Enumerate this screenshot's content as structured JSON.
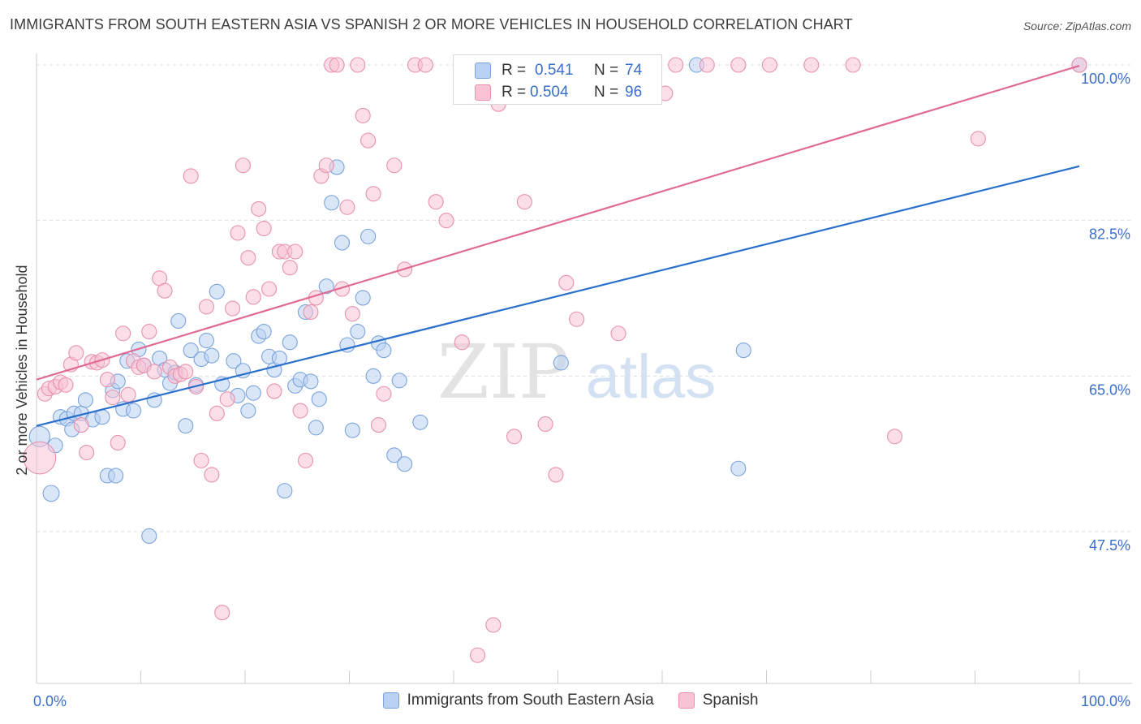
{
  "title": "IMMIGRANTS FROM SOUTH EASTERN ASIA VS SPANISH 2 OR MORE VEHICLES IN HOUSEHOLD CORRELATION CHART",
  "source": "Source: ZipAtlas.com",
  "watermark": {
    "zip": "ZIP",
    "atlas": "atlas"
  },
  "colors": {
    "blue_fill": "#b9d2f3",
    "blue_stroke": "#7aa3dc",
    "blue_line": "#2a6fcc",
    "pink_fill": "#f8c3d4",
    "pink_stroke": "#e791ae",
    "pink_line": "#e06a95",
    "value_text": "#3a6fc8",
    "grid": "#dddddd"
  },
  "stats": [
    {
      "series": "Immigrants from South Eastern Asia",
      "r_label": "R =",
      "r_value": "0.541",
      "n_label": "N =",
      "n_value": "74",
      "color": "blue"
    },
    {
      "series": "Spanish",
      "r_label": "R =",
      "r_value": "0.504",
      "n_label": "N =",
      "n_value": "96",
      "color": "pink"
    }
  ],
  "legend": [
    {
      "label": "Immigrants from South Eastern Asia",
      "color": "blue"
    },
    {
      "label": "Spanish",
      "color": "pink"
    }
  ],
  "chart_data": {
    "type": "scatter",
    "title": "IMMIGRANTS FROM SOUTH EASTERN ASIA VS SPANISH 2 OR MORE VEHICLES IN HOUSEHOLD CORRELATION CHART",
    "xlabel": "",
    "ylabel": "2 or more Vehicles in Household",
    "xlim": [
      0,
      100
    ],
    "ylim": [
      31,
      100.5
    ],
    "x_tick_labels": [
      {
        "value": 0,
        "label": "0.0%"
      },
      {
        "value": 100,
        "label": "100.0%"
      }
    ],
    "y_tick_labels": [
      {
        "value": 100,
        "label": "100.0%"
      },
      {
        "value": 82.5,
        "label": "82.5%"
      },
      {
        "value": 65,
        "label": "65.0%"
      },
      {
        "value": 47.5,
        "label": "47.5%"
      }
    ],
    "grid": true,
    "legend_position": "bottom",
    "series": [
      {
        "name": "Immigrants from South Eastern Asia",
        "color": "blue",
        "trend": {
          "x": [
            0,
            100
          ],
          "y": [
            59.4,
            88.6
          ]
        },
        "points": [
          [
            0.3,
            58.2,
            1.4
          ],
          [
            1.4,
            51.8,
            1.1
          ],
          [
            1.8,
            57.2,
            1
          ],
          [
            2.3,
            60.4,
            1
          ],
          [
            2.9,
            60.2,
            1
          ],
          [
            3.4,
            59,
            1
          ],
          [
            3.6,
            60.8,
            1
          ],
          [
            4.3,
            60.8,
            1
          ],
          [
            4.7,
            62.3,
            1
          ],
          [
            5.4,
            60.1,
            1
          ],
          [
            6.3,
            60.4,
            1
          ],
          [
            6.8,
            53.8,
            1
          ],
          [
            7.3,
            63.4,
            1
          ],
          [
            7.6,
            53.8,
            1
          ],
          [
            7.8,
            64.4,
            1
          ],
          [
            8.3,
            61.3,
            1
          ],
          [
            8.7,
            66.7,
            1
          ],
          [
            9.3,
            61.1,
            1
          ],
          [
            9.8,
            68,
            1
          ],
          [
            10.3,
            66.2,
            1
          ],
          [
            10.8,
            47,
            1
          ],
          [
            11.3,
            62.3,
            1
          ],
          [
            11.8,
            67,
            1
          ],
          [
            12.3,
            65.7,
            1
          ],
          [
            12.8,
            64.2,
            1
          ],
          [
            13.3,
            65.4,
            1
          ],
          [
            13.6,
            71.2,
            1
          ],
          [
            14.3,
            59.4,
            1
          ],
          [
            14.8,
            67.9,
            1
          ],
          [
            15.3,
            64,
            1
          ],
          [
            15.8,
            66.9,
            1
          ],
          [
            16.3,
            69,
            1
          ],
          [
            16.8,
            67.3,
            1
          ],
          [
            17.3,
            74.5,
            1
          ],
          [
            17.8,
            64.1,
            1
          ],
          [
            18.9,
            66.7,
            1
          ],
          [
            19.3,
            62.8,
            1
          ],
          [
            19.8,
            65.6,
            1
          ],
          [
            20.3,
            61.1,
            1
          ],
          [
            20.8,
            63.1,
            1
          ],
          [
            21.3,
            69.5,
            1
          ],
          [
            21.8,
            70,
            1
          ],
          [
            22.3,
            67.2,
            1
          ],
          [
            22.8,
            65.7,
            1
          ],
          [
            23.3,
            67,
            1
          ],
          [
            23.8,
            52.1,
            1
          ],
          [
            24.3,
            68.8,
            1
          ],
          [
            24.8,
            63.9,
            1
          ],
          [
            25.3,
            64.6,
            1
          ],
          [
            25.8,
            72.2,
            1
          ],
          [
            26.3,
            64.4,
            1
          ],
          [
            26.8,
            59.2,
            1
          ],
          [
            27.1,
            62.4,
            1
          ],
          [
            27.8,
            75.1,
            1
          ],
          [
            28.3,
            84.5,
            1
          ],
          [
            28.8,
            88.5,
            1
          ],
          [
            29.3,
            80,
            1
          ],
          [
            29.8,
            68.5,
            1
          ],
          [
            30.3,
            58.9,
            1
          ],
          [
            30.8,
            70,
            1
          ],
          [
            31.3,
            73.8,
            1
          ],
          [
            31.8,
            80.7,
            1
          ],
          [
            32.3,
            65,
            1
          ],
          [
            32.8,
            68.7,
            1
          ],
          [
            33.3,
            67.9,
            1
          ],
          [
            34.3,
            56.1,
            1
          ],
          [
            34.8,
            64.5,
            1
          ],
          [
            35.3,
            55.1,
            1
          ],
          [
            36.8,
            59.8,
            1
          ],
          [
            50.3,
            66.5,
            1
          ],
          [
            63.3,
            100,
            1
          ],
          [
            67.8,
            67.9,
            1
          ],
          [
            67.3,
            54.6,
            1
          ],
          [
            100,
            100,
            1
          ]
        ]
      },
      {
        "name": "Spanish",
        "color": "pink",
        "trend": {
          "x": [
            0,
            100
          ],
          "y": [
            64.6,
            99.9
          ]
        },
        "points": [
          [
            0.3,
            55.8,
            2.2
          ],
          [
            0.8,
            63,
            1
          ],
          [
            1.2,
            63.6,
            1
          ],
          [
            1.8,
            63.8,
            1
          ],
          [
            2.3,
            64.3,
            1
          ],
          [
            2.8,
            64,
            1
          ],
          [
            3.3,
            66.3,
            1
          ],
          [
            3.8,
            67.6,
            1
          ],
          [
            4.3,
            59.5,
            1
          ],
          [
            4.8,
            56.4,
            1
          ],
          [
            5.3,
            66.6,
            1
          ],
          [
            5.8,
            66.5,
            1
          ],
          [
            6.3,
            66.8,
            1
          ],
          [
            6.8,
            64.6,
            1
          ],
          [
            7.3,
            62.6,
            1
          ],
          [
            7.8,
            57.5,
            1
          ],
          [
            8.3,
            69.8,
            1
          ],
          [
            8.8,
            62.9,
            1
          ],
          [
            9.3,
            66.7,
            1
          ],
          [
            9.8,
            66,
            1
          ],
          [
            10.3,
            66.2,
            1
          ],
          [
            10.8,
            70,
            1
          ],
          [
            11.3,
            65.5,
            1
          ],
          [
            11.8,
            76,
            1
          ],
          [
            12.3,
            74.6,
            1
          ],
          [
            12.8,
            66,
            1
          ],
          [
            13.3,
            65,
            1
          ],
          [
            13.8,
            65.2,
            1
          ],
          [
            14.3,
            65.5,
            1
          ],
          [
            14.8,
            87.5,
            1
          ],
          [
            15.3,
            63.8,
            1
          ],
          [
            15.8,
            55.5,
            1
          ],
          [
            16.3,
            72.8,
            1
          ],
          [
            16.8,
            53.9,
            1
          ],
          [
            17.3,
            60.8,
            1
          ],
          [
            17.8,
            38.4,
            1
          ],
          [
            18.3,
            62.4,
            1
          ],
          [
            18.8,
            72.6,
            1
          ],
          [
            19.3,
            81.1,
            1
          ],
          [
            19.8,
            88.7,
            1
          ],
          [
            20.3,
            78.3,
            1
          ],
          [
            20.8,
            73.9,
            1
          ],
          [
            21.3,
            83.8,
            1
          ],
          [
            21.8,
            81.6,
            1
          ],
          [
            22.3,
            74.8,
            1
          ],
          [
            22.8,
            63.3,
            1
          ],
          [
            23.3,
            79,
            1
          ],
          [
            23.8,
            79,
            1
          ],
          [
            24.3,
            77.2,
            1
          ],
          [
            24.8,
            79,
            1
          ],
          [
            25.3,
            61.1,
            1
          ],
          [
            25.8,
            55.5,
            1
          ],
          [
            26.3,
            72.2,
            1
          ],
          [
            26.8,
            73.8,
            1
          ],
          [
            27.3,
            87.5,
            1
          ],
          [
            27.8,
            88.7,
            1
          ],
          [
            28.3,
            100,
            1
          ],
          [
            28.8,
            100,
            1
          ],
          [
            29.3,
            74.8,
            1
          ],
          [
            29.8,
            84,
            1
          ],
          [
            30.3,
            72,
            1
          ],
          [
            30.8,
            100,
            1
          ],
          [
            31.3,
            94.3,
            1
          ],
          [
            31.8,
            91.5,
            1
          ],
          [
            32.3,
            85.5,
            1
          ],
          [
            32.8,
            59.5,
            1
          ],
          [
            33.3,
            63,
            1
          ],
          [
            34.3,
            88.7,
            1
          ],
          [
            35.3,
            77,
            1
          ],
          [
            36.3,
            100,
            1
          ],
          [
            37.3,
            100,
            1
          ],
          [
            38.3,
            84.6,
            1
          ],
          [
            39.3,
            82.5,
            1
          ],
          [
            40.8,
            68.8,
            1
          ],
          [
            42.3,
            33.6,
            1
          ],
          [
            43.8,
            37,
            1
          ],
          [
            44.3,
            95.6,
            1
          ],
          [
            45.8,
            58.2,
            1
          ],
          [
            46.8,
            84.6,
            1
          ],
          [
            47.8,
            100,
            1
          ],
          [
            48.8,
            59.6,
            1
          ],
          [
            49.8,
            53.9,
            1
          ],
          [
            50.8,
            75.5,
            1
          ],
          [
            51.8,
            71.4,
            1
          ],
          [
            53.8,
            100,
            1
          ],
          [
            55.8,
            69.8,
            1
          ],
          [
            60.3,
            96.8,
            1
          ],
          [
            61.3,
            100,
            1
          ],
          [
            64.3,
            100,
            1
          ],
          [
            67.3,
            100,
            1
          ],
          [
            70.3,
            100,
            1
          ],
          [
            74.3,
            100,
            1
          ],
          [
            78.3,
            100,
            1
          ],
          [
            82.3,
            58.2,
            1
          ],
          [
            90.3,
            91.7,
            1
          ],
          [
            100,
            100,
            1
          ]
        ]
      }
    ]
  }
}
